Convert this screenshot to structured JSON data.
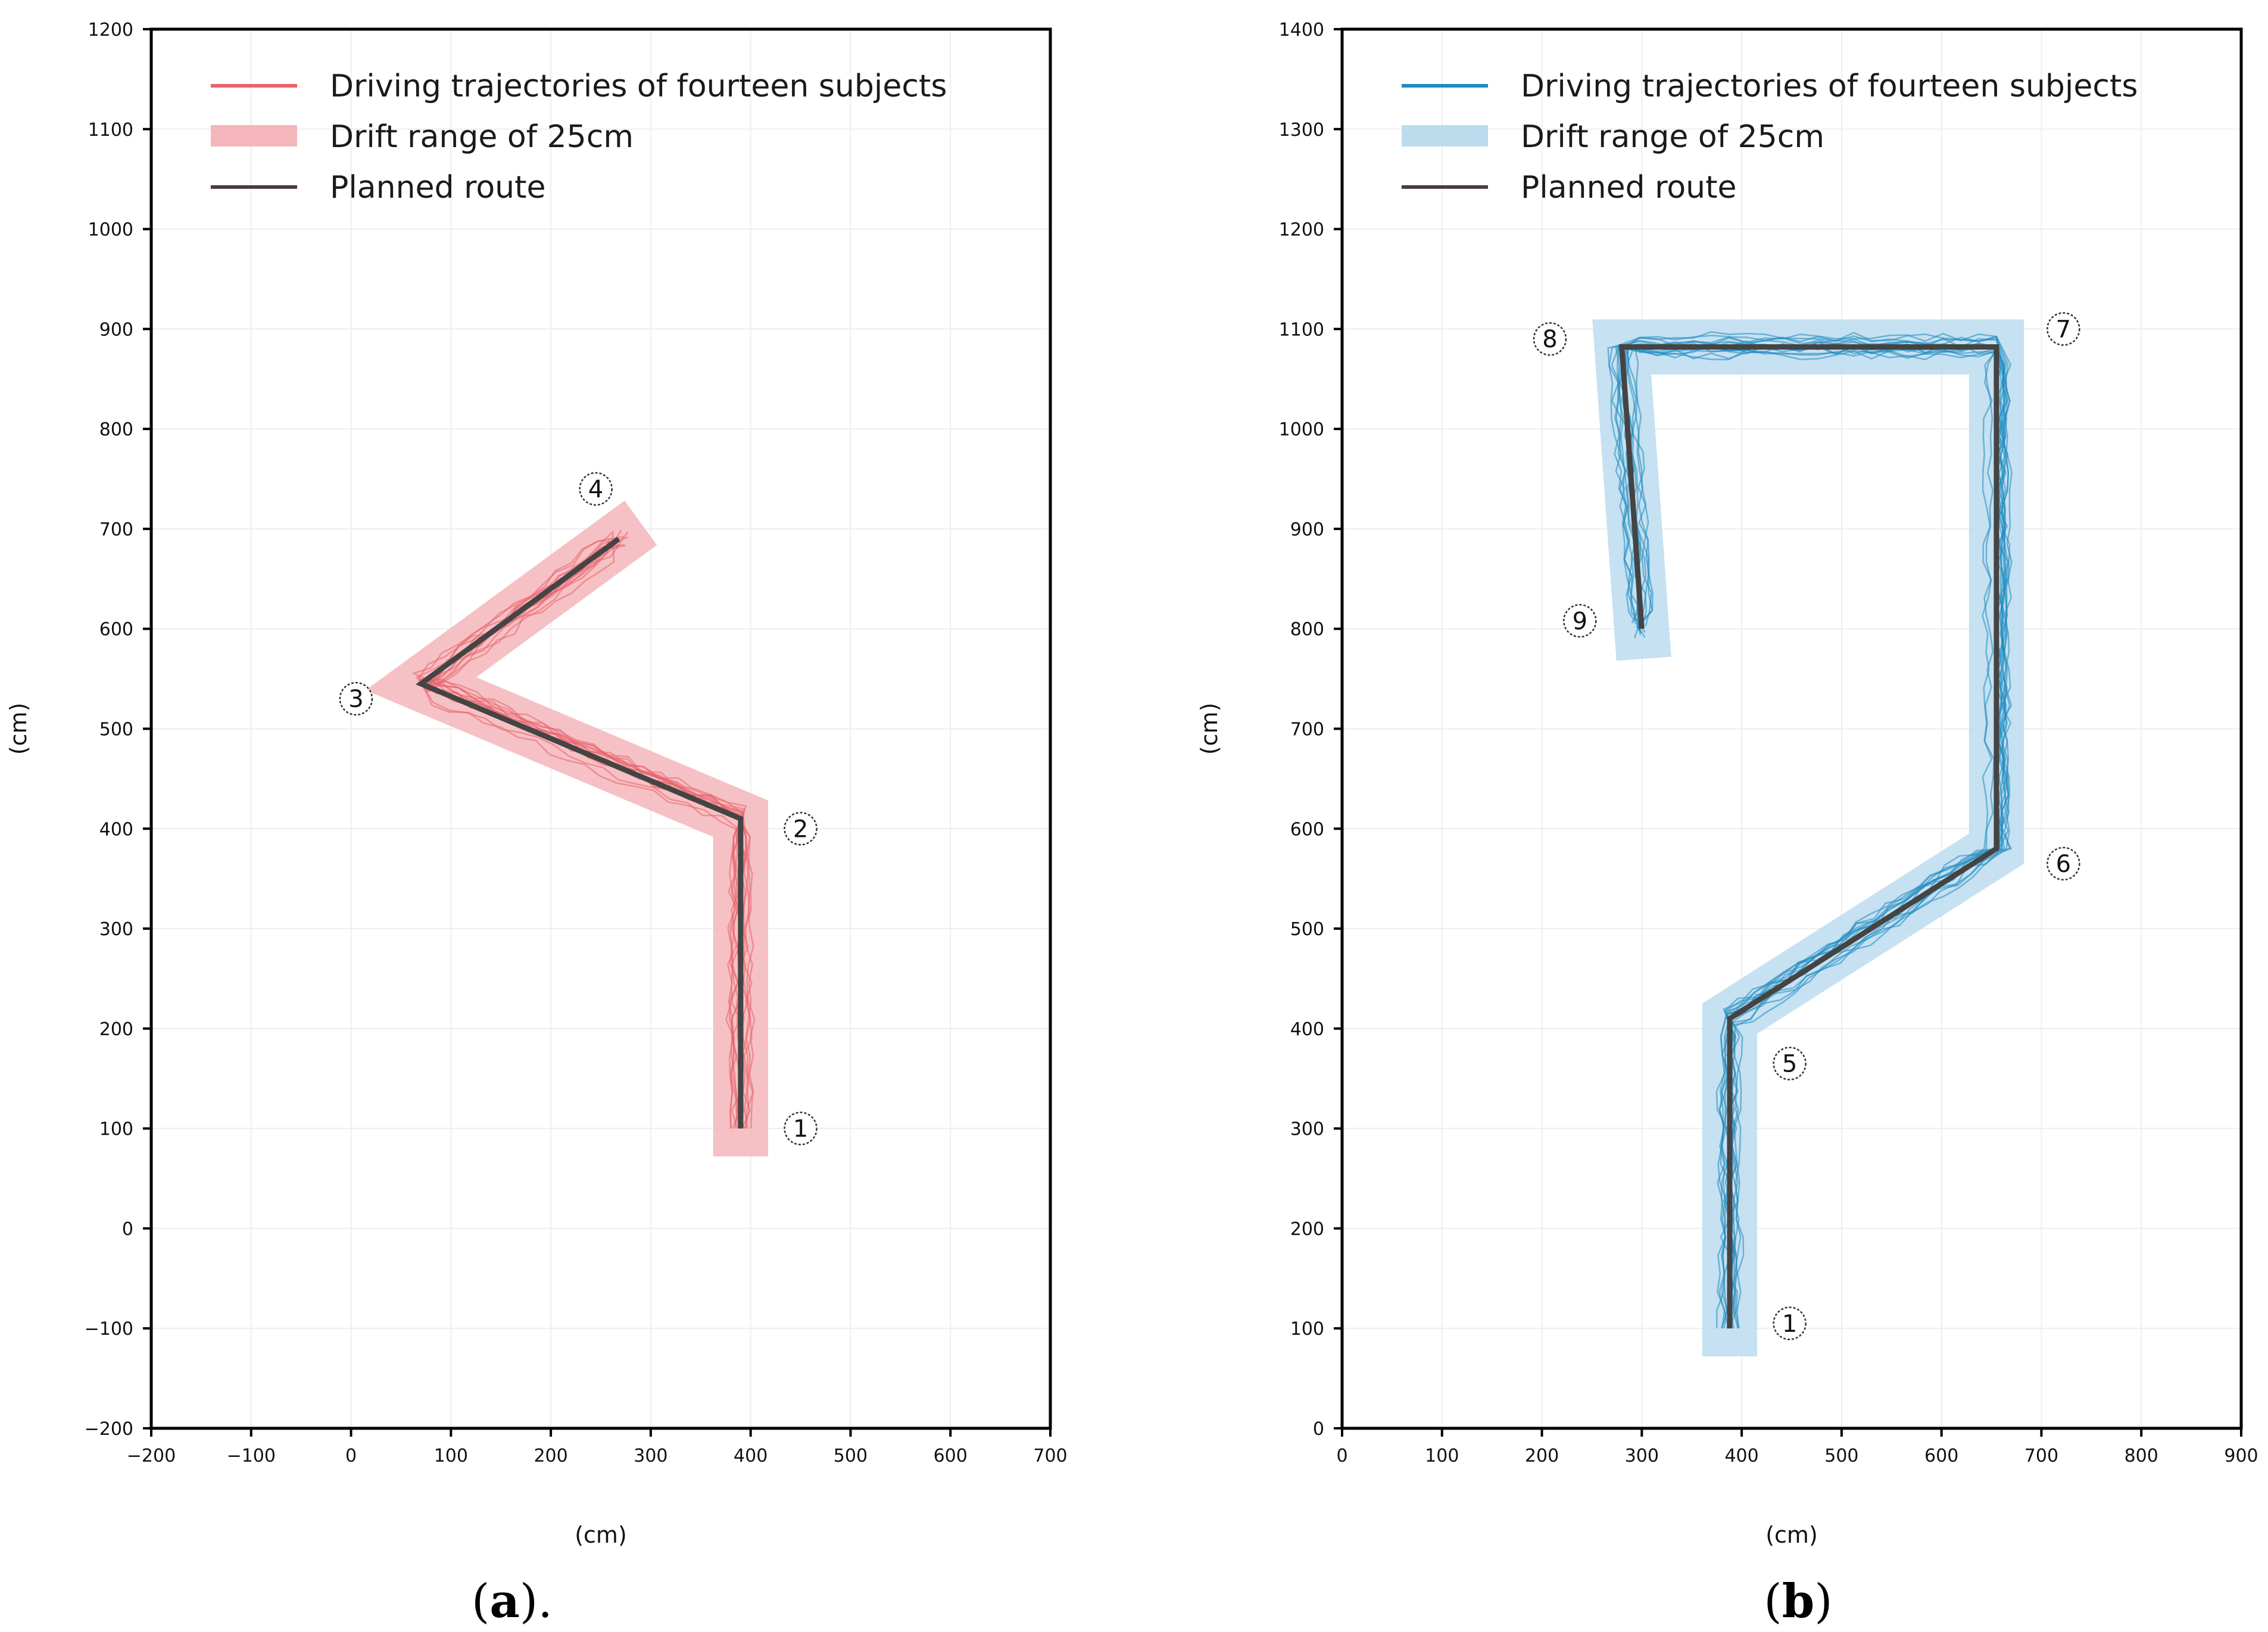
{
  "chart_data": [
    {
      "id": "a",
      "type": "line",
      "caption_letter": "a",
      "caption_suffix": ").",
      "xlabel": "(cm)",
      "ylabel": "(cm)",
      "xlim": [
        -200,
        700
      ],
      "ylim": [
        -200,
        1200
      ],
      "xticks": [
        -200,
        -100,
        0,
        100,
        200,
        300,
        400,
        500,
        600,
        700
      ],
      "yticks": [
        -200,
        -100,
        0,
        100,
        200,
        300,
        400,
        500,
        600,
        700,
        800,
        900,
        1000,
        1100,
        1200
      ],
      "grid": true,
      "legend_position": "top-left",
      "legend": [
        {
          "label": "Driving trajectories of fourteen subjects",
          "kind": "line",
          "color": "#e8616b"
        },
        {
          "label": "Drift range of 25cm",
          "kind": "band",
          "color": "#f4b6ba"
        },
        {
          "label": "Planned route",
          "kind": "line",
          "color": "#4d3a40"
        }
      ],
      "series": [
        {
          "name": "Planned route",
          "color": "#444444",
          "points": [
            [
              390,
              100
            ],
            [
              390,
              410
            ],
            [
              70,
              545
            ],
            [
              268,
              690
            ]
          ]
        },
        {
          "name": "Drift range of 25cm",
          "color": "#f4b6ba",
          "width_cm": 55,
          "points": [
            [
              390,
              72
            ],
            [
              390,
              410
            ],
            [
              70,
              545
            ],
            [
              268,
              690
            ],
            [
              290,
              706
            ]
          ]
        }
      ],
      "trajectory_color": "#e8616b",
      "trajectory_count": 14,
      "waypoints": [
        {
          "label": "1",
          "x": 450,
          "y": 100
        },
        {
          "label": "2",
          "x": 450,
          "y": 400
        },
        {
          "label": "3",
          "x": 5,
          "y": 530
        },
        {
          "label": "4",
          "x": 245,
          "y": 740
        }
      ]
    },
    {
      "id": "b",
      "type": "line",
      "caption_letter": "b",
      "caption_suffix": ")",
      "xlabel": "(cm)",
      "ylabel": "(cm)",
      "xlim": [
        0,
        900
      ],
      "ylim": [
        0,
        1400
      ],
      "xticks": [
        0,
        100,
        200,
        300,
        400,
        500,
        600,
        700,
        800,
        900
      ],
      "yticks": [
        0,
        100,
        200,
        300,
        400,
        500,
        600,
        700,
        800,
        900,
        1000,
        1100,
        1200,
        1300,
        1400
      ],
      "grid": true,
      "legend_position": "top-left",
      "legend": [
        {
          "label": "Driving trajectories of fourteen subjects",
          "kind": "line",
          "color": "#1f8ac0"
        },
        {
          "label": "Drift range of 25cm",
          "kind": "band",
          "color": "#bcdcee"
        },
        {
          "label": "Planned route",
          "kind": "line",
          "color": "#4d3a40"
        }
      ],
      "series": [
        {
          "name": "Planned route",
          "color": "#444444",
          "points": [
            [
              388,
              100
            ],
            [
              388,
              410
            ],
            [
              655,
              580
            ],
            [
              655,
              1082
            ],
            [
              280,
              1082
            ],
            [
              300,
              800
            ]
          ]
        },
        {
          "name": "Drift range of 25cm",
          "color": "#bcdcee",
          "width_cm": 55,
          "points": [
            [
              388,
              72
            ],
            [
              388,
              410
            ],
            [
              655,
              580
            ],
            [
              655,
              1082
            ],
            [
              280,
              1082
            ],
            [
              302,
              770
            ]
          ]
        }
      ],
      "trajectory_color": "#1f8ac0",
      "trajectory_count": 14,
      "waypoints": [
        {
          "label": "1",
          "x": 448,
          "y": 105
        },
        {
          "label": "5",
          "x": 448,
          "y": 365
        },
        {
          "label": "6",
          "x": 722,
          "y": 565
        },
        {
          "label": "7",
          "x": 722,
          "y": 1100
        },
        {
          "label": "8",
          "x": 208,
          "y": 1090
        },
        {
          "label": "9",
          "x": 238,
          "y": 808
        }
      ]
    }
  ]
}
